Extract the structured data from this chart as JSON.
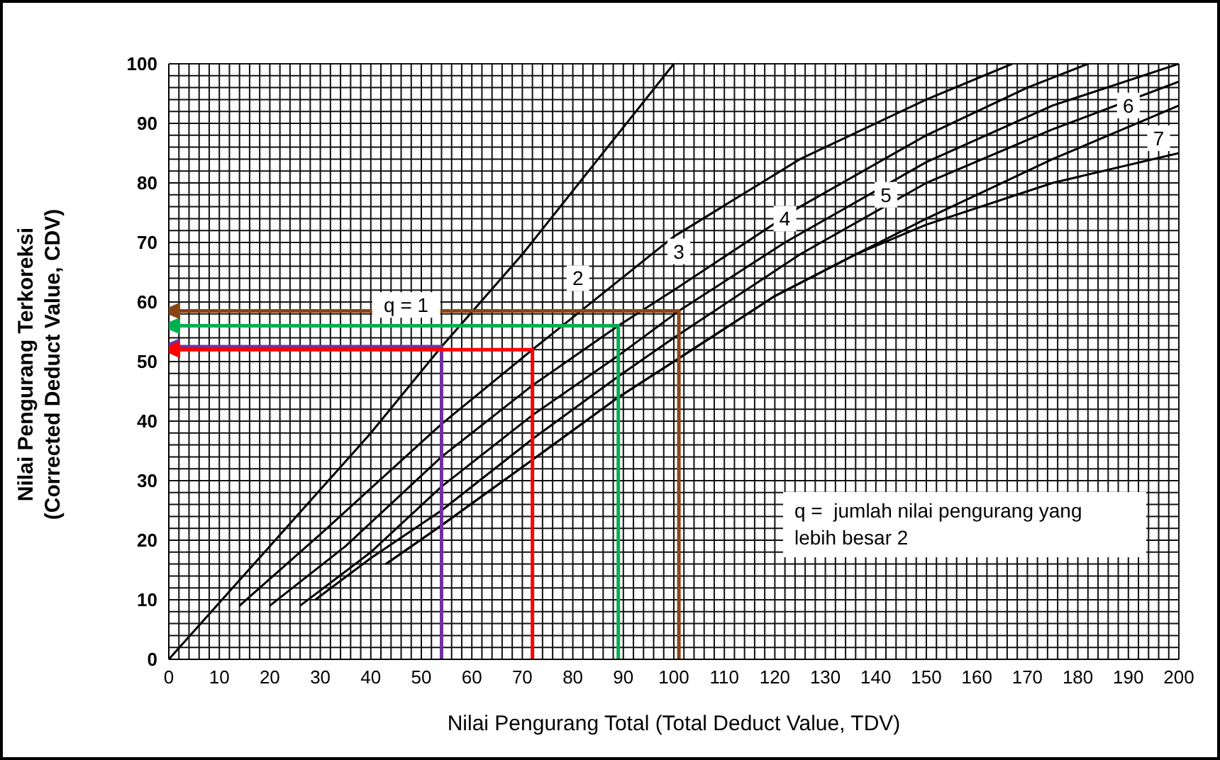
{
  "chart_data": {
    "type": "line",
    "xlabel": "Nilai Pengurang Total (Total Deduct Value, TDV)",
    "ylabel": "Nilai Pengurang Terkoreksi\n(Corrected Deduct Value, CDV)",
    "xlim": [
      0,
      200
    ],
    "ylim": [
      0,
      100
    ],
    "grid": true,
    "xticks": [
      0,
      {
        "value": 2,
        "label": null
      },
      {
        "value": 4,
        "label": null
      },
      {
        "value": 6,
        "label": null
      },
      {
        "value": 8,
        "label": null
      },
      10,
      {
        "value": 12,
        "label": null
      },
      {
        "value": 14,
        "label": null
      },
      {
        "value": 16,
        "label": null
      },
      {
        "value": 18,
        "label": null
      },
      20,
      {
        "value": 22,
        "label": null
      },
      {
        "value": 24,
        "label": null
      },
      {
        "value": 26,
        "label": null
      },
      {
        "value": 28,
        "label": null
      },
      30,
      {
        "value": 32,
        "label": null
      },
      {
        "value": 34,
        "label": null
      },
      {
        "value": 36,
        "label": null
      },
      {
        "value": 38,
        "label": null
      },
      40,
      {
        "value": 42,
        "label": null
      },
      {
        "value": 44,
        "label": null
      },
      {
        "value": 46,
        "label": null
      },
      {
        "value": 48,
        "label": null
      },
      50,
      {
        "value": 52,
        "label": null
      },
      {
        "value": 54,
        "label": null
      },
      {
        "value": 56,
        "label": null
      },
      {
        "value": 58,
        "label": null
      },
      60,
      {
        "value": 62,
        "label": null
      },
      {
        "value": 64,
        "label": null
      },
      {
        "value": 66,
        "label": null
      },
      {
        "value": 68,
        "label": null
      },
      70,
      {
        "value": 72,
        "label": null
      },
      {
        "value": 74,
        "label": null
      },
      {
        "value": 76,
        "label": null
      },
      {
        "value": 78,
        "label": null
      },
      80,
      {
        "value": 82,
        "label": null
      },
      {
        "value": 84,
        "label": null
      },
      {
        "value": 86,
        "label": null
      },
      {
        "value": 88,
        "label": null
      },
      90,
      {
        "value": 92,
        "label": null
      },
      {
        "value": 94,
        "label": null
      },
      {
        "value": 96,
        "label": null
      },
      {
        "value": 98,
        "label": null
      },
      100,
      {
        "value": 102,
        "label": null
      },
      {
        "value": 104,
        "label": null
      },
      {
        "value": 106,
        "label": null
      },
      {
        "value": 108,
        "label": null
      },
      110,
      {
        "value": 112,
        "label": null
      },
      {
        "value": 114,
        "label": null
      },
      {
        "value": 116,
        "label": null
      },
      {
        "value": 118,
        "label": null
      },
      120,
      {
        "value": 122,
        "label": null
      },
      {
        "value": 124,
        "label": null
      },
      {
        "value": 126,
        "label": null
      },
      {
        "value": 128,
        "label": null
      },
      130,
      {
        "value": 132,
        "label": null
      },
      {
        "value": 134,
        "label": null
      },
      {
        "value": 136,
        "label": null
      },
      {
        "value": 138,
        "label": null
      },
      140,
      {
        "value": 142,
        "label": null
      },
      {
        "value": 144,
        "label": null
      },
      {
        "value": 146,
        "label": null
      },
      {
        "value": 148,
        "label": null
      },
      150,
      {
        "value": 152,
        "label": null
      },
      {
        "value": 154,
        "label": null
      },
      {
        "value": 156,
        "label": null
      },
      {
        "value": 158,
        "label": null
      },
      160,
      {
        "value": 162,
        "label": null
      },
      {
        "value": 164,
        "label": null
      },
      {
        "value": 166,
        "label": null
      },
      {
        "value": 168,
        "label": null
      },
      170,
      {
        "value": 172,
        "label": null
      },
      {
        "value": 174,
        "label": null
      },
      {
        "value": 176,
        "label": null
      },
      {
        "value": 178,
        "label": null
      },
      180,
      {
        "value": 182,
        "label": null
      },
      {
        "value": 184,
        "label": null
      },
      {
        "value": 186,
        "label": null
      },
      {
        "value": 188,
        "label": null
      },
      190,
      {
        "value": 192,
        "label": null
      },
      {
        "value": 194,
        "label": null
      },
      {
        "value": 196,
        "label": null
      },
      {
        "value": 198,
        "label": null
      },
      200
    ],
    "yticks": [
      0,
      {
        "value": 2,
        "label": null
      },
      {
        "value": 4,
        "label": null
      },
      {
        "value": 6,
        "label": null
      },
      {
        "value": 8,
        "label": null
      },
      10,
      {
        "value": 12,
        "label": null
      },
      {
        "value": 14,
        "label": null
      },
      {
        "value": 16,
        "label": null
      },
      {
        "value": 18,
        "label": null
      },
      20,
      {
        "value": 22,
        "label": null
      },
      {
        "value": 24,
        "label": null
      },
      {
        "value": 26,
        "label": null
      },
      {
        "value": 28,
        "label": null
      },
      30,
      {
        "value": 32,
        "label": null
      },
      {
        "value": 34,
        "label": null
      },
      {
        "value": 36,
        "label": null
      },
      {
        "value": 38,
        "label": null
      },
      40,
      {
        "value": 42,
        "label": null
      },
      {
        "value": 44,
        "label": null
      },
      {
        "value": 46,
        "label": null
      },
      {
        "value": 48,
        "label": null
      },
      50,
      {
        "value": 52,
        "label": null
      },
      {
        "value": 54,
        "label": null
      },
      {
        "value": 56,
        "label": null
      },
      {
        "value": 58,
        "label": null
      },
      60,
      {
        "value": 62,
        "label": null
      },
      {
        "value": 64,
        "label": null
      },
      {
        "value": 66,
        "label": null
      },
      {
        "value": 68,
        "label": null
      },
      70,
      {
        "value": 72,
        "label": null
      },
      {
        "value": 74,
        "label": null
      },
      {
        "value": 76,
        "label": null
      },
      {
        "value": 78,
        "label": null
      },
      80,
      {
        "value": 82,
        "label": null
      },
      {
        "value": 84,
        "label": null
      },
      {
        "value": 86,
        "label": null
      },
      {
        "value": 88,
        "label": null
      },
      90,
      {
        "value": 92,
        "label": null
      },
      {
        "value": 94,
        "label": null
      },
      {
        "value": 96,
        "label": null
      },
      {
        "value": 98,
        "label": null
      },
      100
    ],
    "series": [
      {
        "color": "#000000",
        "x": [
          0,
          20,
          40,
          54,
          70,
          85,
          100
        ],
        "values": [
          0,
          19,
          38,
          52.5,
          68,
          84,
          100
        ]
      },
      {
        "color": "#000000",
        "x": [
          14,
          30,
          54,
          72,
          100,
          125,
          150,
          167
        ],
        "values": [
          9,
          21,
          39.5,
          52,
          71,
          84,
          94,
          100
        ]
      },
      {
        "color": "#000000",
        "x": [
          20,
          35,
          54,
          72,
          89,
          100,
          125,
          150,
          170,
          182
        ],
        "values": [
          9,
          19,
          34,
          46,
          56,
          62,
          76,
          88,
          96,
          100
        ]
      },
      {
        "color": "#000000",
        "x": [
          26,
          40,
          54,
          72,
          89,
          101,
          122,
          150,
          175,
          200
        ],
        "values": [
          9,
          18,
          29,
          41,
          51,
          58.5,
          70,
          83.5,
          93,
          100
        ]
      },
      {
        "color": "#000000",
        "x": [
          29,
          40,
          54,
          72,
          89,
          100,
          125,
          150,
          175,
          200
        ],
        "values": [
          10,
          17,
          25,
          37,
          47.5,
          54,
          68,
          80,
          89,
          97
        ]
      },
      {
        "color": "#000000",
        "x": [
          43,
          54,
          72,
          89,
          100,
          120,
          136,
          150,
          175,
          200
        ],
        "values": [
          16,
          22.5,
          33.5,
          44,
          50,
          61,
          68,
          74,
          84,
          93
        ]
      },
      {
        "color": "#000000",
        "x": [
          43,
          54,
          72,
          89,
          100,
          120,
          136,
          150,
          175,
          200
        ],
        "values": [
          16,
          22.5,
          33.5,
          44,
          50,
          61,
          68,
          73,
          80,
          85
        ]
      },
      {
        "color": "#7030a0",
        "x": [
          54,
          54,
          0
        ],
        "values": [
          0,
          52.5,
          52.5
        ]
      },
      {
        "color": "#ff0000",
        "x": [
          72,
          72,
          0
        ],
        "values": [
          0,
          52,
          52
        ]
      },
      {
        "color": "#00b050",
        "x": [
          89,
          89,
          0
        ],
        "values": [
          0,
          56,
          56
        ]
      },
      {
        "color": "#8b4513",
        "x": [
          101,
          101,
          0
        ],
        "values": [
          0,
          58.5,
          58.5
        ]
      }
    ],
    "annotations": [
      {
        "text": "q = 1",
        "x": 47,
        "y": 59.5
      },
      {
        "text": "2",
        "x": 81,
        "y": 64
      },
      {
        "text": "3",
        "x": 101,
        "y": 68.5
      },
      {
        "text": "4",
        "x": 122,
        "y": 74
      },
      {
        "text": "5",
        "x": 142,
        "y": 78
      },
      {
        "text": "6",
        "x": 190,
        "y": 93
      },
      {
        "text": "7",
        "x": 196,
        "y": 87.5
      },
      "q =  jumlah nilai pengurang yang\nlebih besar 2"
    ]
  }
}
